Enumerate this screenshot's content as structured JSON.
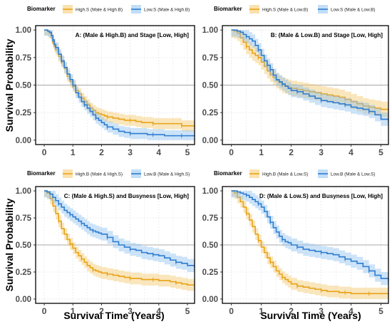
{
  "figure": {
    "y_label": "Survival Probability",
    "x_label": "Survival Time (Years)",
    "legend_title": "Biomarker"
  },
  "colors": {
    "orange": "#E8A317",
    "orange_fill": "#F5C86B",
    "blue": "#2E7DD1",
    "blue_fill": "#8EC2F0",
    "panel_border": "#000000",
    "grid": "#E6E6E6",
    "median_line": "#A8A8A8",
    "axis_text": "#4D4D4D"
  },
  "chart_data": [
    {
      "type": "line",
      "title": "A: (Male & High.B) and Stage [Low, High]",
      "xlim": [
        -0.3,
        5.25
      ],
      "ylim": [
        -0.04,
        1.04
      ],
      "xticks": [
        0,
        1,
        2,
        3,
        4,
        5
      ],
      "yticks": [
        0,
        0.25,
        0.5,
        0.75,
        1
      ],
      "ytick_labels": [
        "0.00",
        "0.25",
        "0.50",
        "0.75",
        "1.00"
      ],
      "reference_line": 0.5,
      "grid": true,
      "legend_position": "top",
      "series": [
        {
          "name": "High.S (Male & High.B)",
          "color": "orange",
          "x": [
            0,
            0.08,
            0.12,
            0.18,
            0.25,
            0.3,
            0.35,
            0.4,
            0.5,
            0.6,
            0.7,
            0.8,
            0.9,
            1.0,
            1.1,
            1.2,
            1.3,
            1.4,
            1.5,
            1.6,
            1.7,
            1.8,
            1.9,
            2.0,
            2.1,
            2.2,
            2.4,
            2.6,
            2.8,
            3.0,
            3.2,
            3.4,
            3.6,
            3.8,
            4.0,
            4.2,
            4.5,
            4.8,
            5.0,
            5.25
          ],
          "y": [
            1.0,
            1.0,
            0.99,
            0.97,
            0.93,
            0.89,
            0.85,
            0.82,
            0.76,
            0.71,
            0.65,
            0.58,
            0.53,
            0.49,
            0.45,
            0.42,
            0.38,
            0.35,
            0.32,
            0.29,
            0.27,
            0.25,
            0.24,
            0.23,
            0.22,
            0.21,
            0.2,
            0.19,
            0.18,
            0.18,
            0.17,
            0.16,
            0.16,
            0.15,
            0.15,
            0.15,
            0.15,
            0.13,
            0.13,
            0.13
          ],
          "band_width": 0.05
        },
        {
          "name": "Low.S (Male & High.B)",
          "color": "blue",
          "x": [
            0,
            0.08,
            0.12,
            0.18,
            0.25,
            0.3,
            0.35,
            0.4,
            0.5,
            0.6,
            0.7,
            0.8,
            0.9,
            1.0,
            1.1,
            1.2,
            1.3,
            1.4,
            1.5,
            1.6,
            1.7,
            1.8,
            1.9,
            2.0,
            2.1,
            2.2,
            2.4,
            2.6,
            2.8,
            3.0,
            3.2,
            3.4,
            3.6,
            3.8,
            4.0,
            4.2,
            4.5,
            4.8,
            5.0,
            5.25
          ],
          "y": [
            1.0,
            1.0,
            0.99,
            0.98,
            0.95,
            0.91,
            0.87,
            0.84,
            0.78,
            0.72,
            0.66,
            0.6,
            0.55,
            0.5,
            0.43,
            0.39,
            0.35,
            0.32,
            0.29,
            0.26,
            0.23,
            0.2,
            0.18,
            0.16,
            0.14,
            0.12,
            0.1,
            0.08,
            0.07,
            0.06,
            0.06,
            0.06,
            0.05,
            0.05,
            0.05,
            0.04,
            0.04,
            0.04,
            0.04,
            0.04
          ],
          "band_width": 0.05
        }
      ]
    },
    {
      "type": "line",
      "title": "B: (Male & Low.B) and Stage [Low, High]",
      "xlim": [
        -0.3,
        5.25
      ],
      "ylim": [
        -0.04,
        1.04
      ],
      "xticks": [
        0,
        1,
        2,
        3,
        4,
        5
      ],
      "yticks": [
        0,
        0.25,
        0.5,
        0.75,
        1
      ],
      "ytick_labels": [
        "0.00",
        "0.25",
        "0.50",
        "0.75",
        "1.00"
      ],
      "reference_line": 0.5,
      "grid": true,
      "legend_position": "top",
      "series": [
        {
          "name": "High.S (Male & Low.B)",
          "color": "orange",
          "x": [
            0,
            0.1,
            0.2,
            0.3,
            0.4,
            0.5,
            0.6,
            0.7,
            0.8,
            0.9,
            1.0,
            1.1,
            1.2,
            1.3,
            1.4,
            1.5,
            1.6,
            1.7,
            1.8,
            1.9,
            2.0,
            2.2,
            2.4,
            2.6,
            2.8,
            3.0,
            3.2,
            3.4,
            3.6,
            3.8,
            4.0,
            4.2,
            4.4,
            4.6,
            4.8,
            5.0,
            5.25
          ],
          "y": [
            1.0,
            0.99,
            0.97,
            0.93,
            0.89,
            0.85,
            0.82,
            0.79,
            0.77,
            0.75,
            0.71,
            0.67,
            0.63,
            0.6,
            0.57,
            0.54,
            0.52,
            0.5,
            0.49,
            0.48,
            0.47,
            0.46,
            0.45,
            0.44,
            0.43,
            0.42,
            0.41,
            0.4,
            0.39,
            0.37,
            0.35,
            0.33,
            0.31,
            0.3,
            0.29,
            0.28,
            0.28
          ],
          "band_width": 0.07
        },
        {
          "name": "Low.S (Male & Low.B)",
          "color": "blue",
          "x": [
            0,
            0.1,
            0.2,
            0.3,
            0.4,
            0.5,
            0.6,
            0.7,
            0.8,
            0.9,
            1.0,
            1.1,
            1.2,
            1.3,
            1.4,
            1.5,
            1.6,
            1.7,
            1.8,
            1.9,
            2.0,
            2.2,
            2.4,
            2.6,
            2.8,
            3.0,
            3.2,
            3.4,
            3.6,
            3.8,
            4.0,
            4.2,
            4.4,
            4.6,
            4.8,
            5.0,
            5.25
          ],
          "y": [
            1.0,
            1.0,
            0.99,
            0.98,
            0.96,
            0.94,
            0.92,
            0.9,
            0.86,
            0.82,
            0.77,
            0.72,
            0.68,
            0.64,
            0.59,
            0.55,
            0.53,
            0.51,
            0.49,
            0.47,
            0.45,
            0.44,
            0.42,
            0.4,
            0.38,
            0.36,
            0.35,
            0.34,
            0.33,
            0.32,
            0.3,
            0.29,
            0.28,
            0.26,
            0.23,
            0.19,
            0.17
          ],
          "band_width": 0.06
        }
      ]
    },
    {
      "type": "line",
      "title": "C: (Male & High.S) and Busyness [Low, High]",
      "xlim": [
        -0.3,
        5.25
      ],
      "ylim": [
        -0.04,
        1.04
      ],
      "xticks": [
        0,
        1,
        2,
        3,
        4,
        5
      ],
      "yticks": [
        0,
        0.25,
        0.5,
        0.75,
        1
      ],
      "ytick_labels": [
        "0.00",
        "0.25",
        "0.50",
        "0.75",
        "1.00"
      ],
      "reference_line": 0.5,
      "grid": true,
      "legend_position": "top",
      "series": [
        {
          "name": "High.B (Male & High.S)",
          "color": "orange",
          "x": [
            0,
            0.1,
            0.2,
            0.3,
            0.4,
            0.5,
            0.6,
            0.7,
            0.8,
            0.9,
            1.0,
            1.1,
            1.2,
            1.3,
            1.4,
            1.5,
            1.6,
            1.7,
            1.8,
            1.9,
            2.0,
            2.2,
            2.4,
            2.6,
            2.8,
            3.0,
            3.2,
            3.4,
            3.6,
            3.8,
            4.0,
            4.2,
            4.4,
            4.6,
            4.8,
            5.0,
            5.25
          ],
          "y": [
            1.0,
            0.98,
            0.93,
            0.86,
            0.79,
            0.72,
            0.65,
            0.6,
            0.55,
            0.51,
            0.47,
            0.43,
            0.4,
            0.37,
            0.34,
            0.31,
            0.29,
            0.27,
            0.26,
            0.25,
            0.24,
            0.23,
            0.22,
            0.21,
            0.2,
            0.19,
            0.19,
            0.18,
            0.18,
            0.18,
            0.17,
            0.17,
            0.16,
            0.15,
            0.14,
            0.13,
            0.13
          ],
          "band_width": 0.055
        },
        {
          "name": "Low.B (Male & High.S)",
          "color": "blue",
          "x": [
            0,
            0.1,
            0.2,
            0.3,
            0.4,
            0.5,
            0.6,
            0.7,
            0.8,
            0.9,
            1.0,
            1.1,
            1.2,
            1.3,
            1.4,
            1.5,
            1.6,
            1.7,
            1.8,
            1.9,
            2.0,
            2.2,
            2.4,
            2.6,
            2.8,
            3.0,
            3.2,
            3.4,
            3.6,
            3.8,
            4.0,
            4.2,
            4.4,
            4.6,
            4.8,
            5.0,
            5.25
          ],
          "y": [
            1.0,
            0.99,
            0.97,
            0.94,
            0.91,
            0.88,
            0.85,
            0.82,
            0.8,
            0.78,
            0.76,
            0.74,
            0.72,
            0.7,
            0.68,
            0.66,
            0.64,
            0.63,
            0.62,
            0.61,
            0.6,
            0.57,
            0.53,
            0.5,
            0.48,
            0.46,
            0.45,
            0.43,
            0.42,
            0.41,
            0.4,
            0.38,
            0.36,
            0.34,
            0.33,
            0.31,
            0.29
          ],
          "band_width": 0.06
        }
      ]
    },
    {
      "type": "line",
      "title": "D: (Male & Low.S) and Busyness [Low, High]",
      "xlim": [
        -0.3,
        5.25
      ],
      "ylim": [
        -0.04,
        1.04
      ],
      "xticks": [
        0,
        1,
        2,
        3,
        4,
        5
      ],
      "yticks": [
        0,
        0.25,
        0.5,
        0.75,
        1
      ],
      "ytick_labels": [
        "0.00",
        "0.25",
        "0.50",
        "0.75",
        "1.00"
      ],
      "reference_line": 0.5,
      "grid": true,
      "legend_position": "top",
      "series": [
        {
          "name": "High.B (Male & Low.S)",
          "color": "orange",
          "x": [
            0,
            0.1,
            0.2,
            0.3,
            0.4,
            0.5,
            0.6,
            0.7,
            0.8,
            0.9,
            1.0,
            1.1,
            1.2,
            1.3,
            1.4,
            1.5,
            1.6,
            1.7,
            1.8,
            1.9,
            2.0,
            2.2,
            2.4,
            2.6,
            2.8,
            3.0,
            3.2,
            3.4,
            3.6,
            3.8,
            4.0,
            4.2,
            4.4,
            4.6,
            4.8,
            5.0,
            5.25
          ],
          "y": [
            1.0,
            0.98,
            0.94,
            0.9,
            0.85,
            0.79,
            0.73,
            0.67,
            0.6,
            0.54,
            0.48,
            0.43,
            0.38,
            0.34,
            0.3,
            0.26,
            0.23,
            0.2,
            0.18,
            0.16,
            0.14,
            0.12,
            0.11,
            0.1,
            0.09,
            0.08,
            0.07,
            0.07,
            0.06,
            0.06,
            0.05,
            0.05,
            0.05,
            0.05,
            0.05,
            0.05,
            0.05
          ],
          "band_width": 0.055
        },
        {
          "name": "Low.B (Male & Low.S)",
          "color": "blue",
          "x": [
            0,
            0.1,
            0.2,
            0.3,
            0.4,
            0.5,
            0.6,
            0.7,
            0.8,
            0.9,
            1.0,
            1.1,
            1.2,
            1.3,
            1.4,
            1.5,
            1.6,
            1.7,
            1.8,
            1.9,
            2.0,
            2.2,
            2.4,
            2.6,
            2.8,
            3.0,
            3.2,
            3.4,
            3.6,
            3.8,
            4.0,
            4.2,
            4.4,
            4.6,
            4.8,
            5.0,
            5.25
          ],
          "y": [
            1.0,
            1.0,
            0.99,
            0.98,
            0.97,
            0.96,
            0.94,
            0.92,
            0.9,
            0.88,
            0.85,
            0.81,
            0.76,
            0.71,
            0.66,
            0.62,
            0.58,
            0.55,
            0.53,
            0.52,
            0.5,
            0.48,
            0.46,
            0.45,
            0.44,
            0.43,
            0.42,
            0.41,
            0.39,
            0.37,
            0.35,
            0.33,
            0.3,
            0.26,
            0.22,
            0.19,
            0.16
          ],
          "band_width": 0.06
        }
      ]
    }
  ]
}
